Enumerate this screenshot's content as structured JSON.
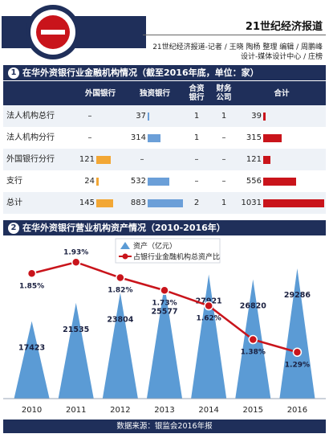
{
  "header": {
    "brand": "21世纪经济报道",
    "credit_line1": "21世纪经济报道-记者 / 王晓 陶杨 整理   编辑 / 周鹏峰",
    "credit_line2": "设计-媒体设计中心 / 庄榜"
  },
  "section1": {
    "number": "1",
    "title": "在华外资银行业金融机构情况（截至2016年底，单位：家）"
  },
  "section2": {
    "number": "2",
    "title": "在华外资银行营业机构资产情况（2010-2016年）"
  },
  "table": {
    "columns": [
      "外国银行",
      "独资银行",
      "合资银行",
      "财务公司",
      "合计"
    ],
    "rows": [
      {
        "label": "法人机构总行",
        "foreign_bank": "–",
        "sole": "37",
        "joint": "1",
        "finance": "1",
        "total": "39"
      },
      {
        "label": "法人机构分行",
        "foreign_bank": "–",
        "sole": "314",
        "joint": "1",
        "finance": "–",
        "total": "315"
      },
      {
        "label": "外国银行分行",
        "foreign_bank": "121",
        "sole": "–",
        "joint": "–",
        "finance": "–",
        "total": "121"
      },
      {
        "label": "支行",
        "foreign_bank": "24",
        "sole": "532",
        "joint": "–",
        "finance": "–",
        "total": "556"
      },
      {
        "label": "总计",
        "foreign_bank": "145",
        "sole": "883",
        "joint": "2",
        "finance": "1",
        "total": "1031"
      }
    ],
    "bar_colors": {
      "foreign_bank": "#f2a735",
      "sole": "#6b9fd8",
      "total": "#c9141b"
    }
  },
  "chart_data": {
    "type": "bar",
    "categories": [
      "2010",
      "2011",
      "2012",
      "2013",
      "2014",
      "2015",
      "2016"
    ],
    "series": [
      {
        "name": "资产（亿元）",
        "type": "bar",
        "values": [
          17423,
          21535,
          23804,
          25577,
          27921,
          26820,
          29286
        ],
        "color": "#5b9bd5"
      },
      {
        "name": "占银行业金融机构总资产比",
        "type": "line",
        "values": [
          1.85,
          1.93,
          1.82,
          1.73,
          1.62,
          1.38,
          1.29
        ],
        "unit": "%",
        "color": "#c9141b"
      }
    ],
    "ylim_bar": [
      0,
      30000
    ],
    "ylim_line": [
      1.2,
      2.0
    ],
    "legend": "top-center"
  },
  "source": "数据来源：银监会2016年报"
}
